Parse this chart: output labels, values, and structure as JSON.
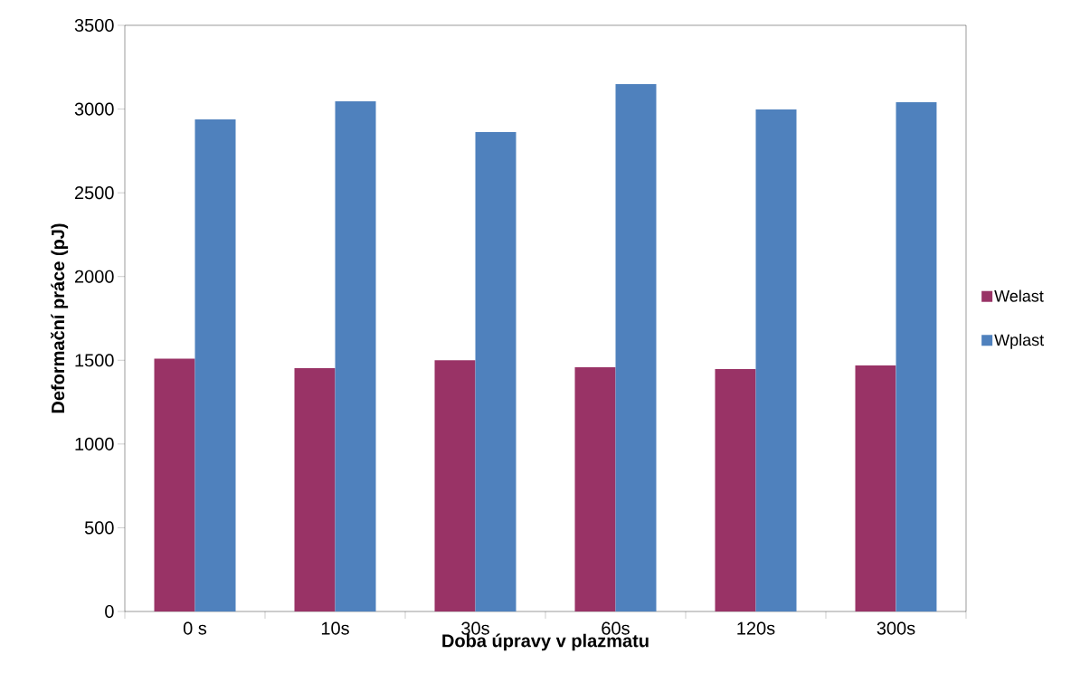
{
  "chart_data": {
    "type": "bar",
    "xlabel": "Doba úpravy v plazmatu",
    "ylabel": "Deformační práce (pJ)",
    "categories": [
      "0 s",
      "10s",
      "30s",
      "60s",
      "120s",
      "300s"
    ],
    "series": [
      {
        "name": "Welast",
        "color": "#993366",
        "values": [
          1510,
          1453,
          1500,
          1458,
          1448,
          1469
        ]
      },
      {
        "name": "Wplast",
        "color": "#4f81bd",
        "values": [
          2938,
          3046,
          2863,
          3149,
          2998,
          3041
        ]
      }
    ],
    "ylim": [
      0,
      3500
    ],
    "yticks": [
      0,
      500,
      1000,
      1500,
      2000,
      2500,
      3000,
      3500
    ],
    "legend": "right",
    "grid": false
  }
}
